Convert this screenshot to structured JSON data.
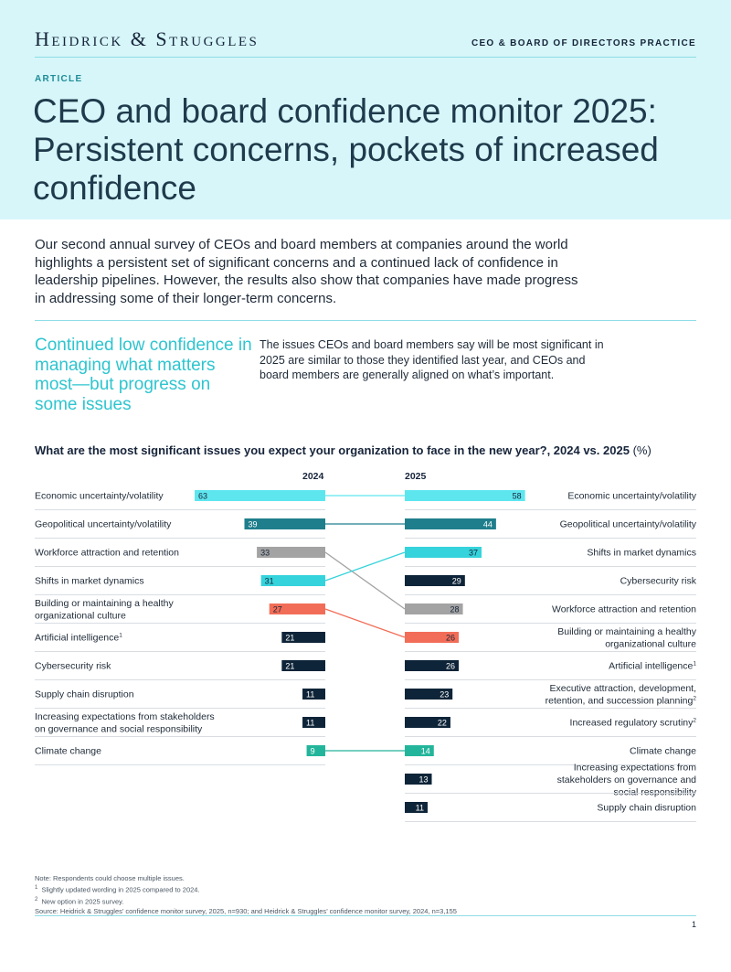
{
  "header": {
    "logo": "Heidrick & Struggles",
    "practice": "CEO & BOARD OF DIRECTORS PRACTICE",
    "kicker": "ARTICLE",
    "title": "CEO and board confidence monitor 2025: Persistent concerns, pockets of increased confidence"
  },
  "intro": "Our second annual survey of CEOs and board members at companies around the world highlights a persistent set of significant concerns and a continued lack of confidence in leadership pipelines. However, the results also show that companies have made progress in addressing some of their longer-term concerns.",
  "pullquote": "Continued low confidence in managing what matters most—but progress on some issues",
  "body": "The issues CEOs and board members say will be most significant in 2025 are similar to those they identified last year, and CEOs and board members are generally aligned on what’s important.",
  "colors": {
    "hero_bg": "#d6f6f9",
    "accent": "#2ec5cf",
    "navy": "#0e2438",
    "teal_dark": "#1f7e8c",
    "gray": "#a3a3a3",
    "coral": "#f26d57",
    "green": "#23b59b"
  },
  "chart_data": {
    "type": "bar",
    "title": "What are the most significant issues you expect your organization to face in the new year?, 2024 vs. 2025",
    "unit": "(%)",
    "xlim": [
      0,
      63
    ],
    "series": [
      {
        "name": "2024",
        "items": [
          {
            "label": "Economic uncertainty/volatility",
            "value": 63,
            "color": "#5ee6ef",
            "text": "#16243a"
          },
          {
            "label": "Geopolitical uncertainty/volatility",
            "value": 39,
            "color": "#1f7e8c",
            "text": "#ffffff"
          },
          {
            "label": "Workforce attraction and retention",
            "value": 33,
            "color": "#a3a3a3",
            "text": "#16243a"
          },
          {
            "label": "Shifts in market dynamics",
            "value": 31,
            "color": "#35d3db",
            "text": "#16243a"
          },
          {
            "label": "Building or maintaining a healthy organizational culture",
            "value": 27,
            "color": "#f26d57",
            "text": "#16243a"
          },
          {
            "label": "Artificial intelligence",
            "sup": "1",
            "value": 21,
            "color": "#0e2438",
            "text": "#ffffff"
          },
          {
            "label": "Cybersecurity risk",
            "value": 21,
            "color": "#0e2438",
            "text": "#ffffff"
          },
          {
            "label": "Supply chain disruption",
            "value": 11,
            "color": "#0e2438",
            "text": "#ffffff"
          },
          {
            "label": "Increasing expectations from stakeholders on governance and social responsibility",
            "value": 11,
            "color": "#0e2438",
            "text": "#ffffff"
          },
          {
            "label": "Climate change",
            "value": 9,
            "color": "#23b59b",
            "text": "#ffffff"
          }
        ]
      },
      {
        "name": "2025",
        "items": [
          {
            "label": "Economic uncertainty/volatility",
            "value": 58,
            "color": "#5ee6ef",
            "text": "#16243a"
          },
          {
            "label": "Geopolitical uncertainty/volatility",
            "value": 44,
            "color": "#1f7e8c",
            "text": "#ffffff"
          },
          {
            "label": "Shifts in market dynamics",
            "value": 37,
            "color": "#35d3db",
            "text": "#16243a"
          },
          {
            "label": "Cybersecurity risk",
            "value": 29,
            "color": "#0e2438",
            "text": "#ffffff"
          },
          {
            "label": "Workforce attraction and retention",
            "value": 28,
            "color": "#a3a3a3",
            "text": "#16243a"
          },
          {
            "label": "Building or maintaining a healthy organizational culture",
            "value": 26,
            "color": "#f26d57",
            "text": "#16243a"
          },
          {
            "label": "Artificial intelligence",
            "sup": "1",
            "value": 26,
            "color": "#0e2438",
            "text": "#ffffff"
          },
          {
            "label": "Executive attraction, development, retention, and succession planning",
            "sup": "2",
            "value": 23,
            "color": "#0e2438",
            "text": "#ffffff"
          },
          {
            "label": "Increased regulatory scrutiny",
            "sup": "2",
            "value": 22,
            "color": "#0e2438",
            "text": "#ffffff"
          },
          {
            "label": "Climate change",
            "value": 14,
            "color": "#23b59b",
            "text": "#ffffff"
          },
          {
            "label": "Increasing expectations from stakeholders on governance and social responsibility",
            "value": 13,
            "color": "#0e2438",
            "text": "#ffffff"
          },
          {
            "label": "Supply chain disruption",
            "value": 11,
            "color": "#0e2438",
            "text": "#ffffff"
          }
        ]
      }
    ],
    "connectors": [
      {
        "label": "Economic uncertainty/volatility",
        "color": "#5ee6ef"
      },
      {
        "label": "Geopolitical uncertainty/volatility",
        "color": "#1f7e8c"
      },
      {
        "label": "Workforce attraction and retention",
        "color": "#a3a3a3"
      },
      {
        "label": "Shifts in market dynamics",
        "color": "#35d3db"
      },
      {
        "label": "Building or maintaining a healthy organizational culture",
        "color": "#f26d57"
      },
      {
        "label": "Climate change",
        "color": "#23b59b"
      }
    ]
  },
  "notes": {
    "line1": "Note: Respondents could choose multiple issues.",
    "n1_mark": "1",
    "n1": "Slightly updated wording in 2025 compared to 2024.",
    "n2_mark": "2",
    "n2": "New option in 2025 survey.",
    "source": "Source: Heidrick & Struggles’ confidence monitor survey, 2025, n=930; and Heidrick & Struggles’ confidence monitor survey, 2024, n=3,155"
  },
  "page_number": "1"
}
